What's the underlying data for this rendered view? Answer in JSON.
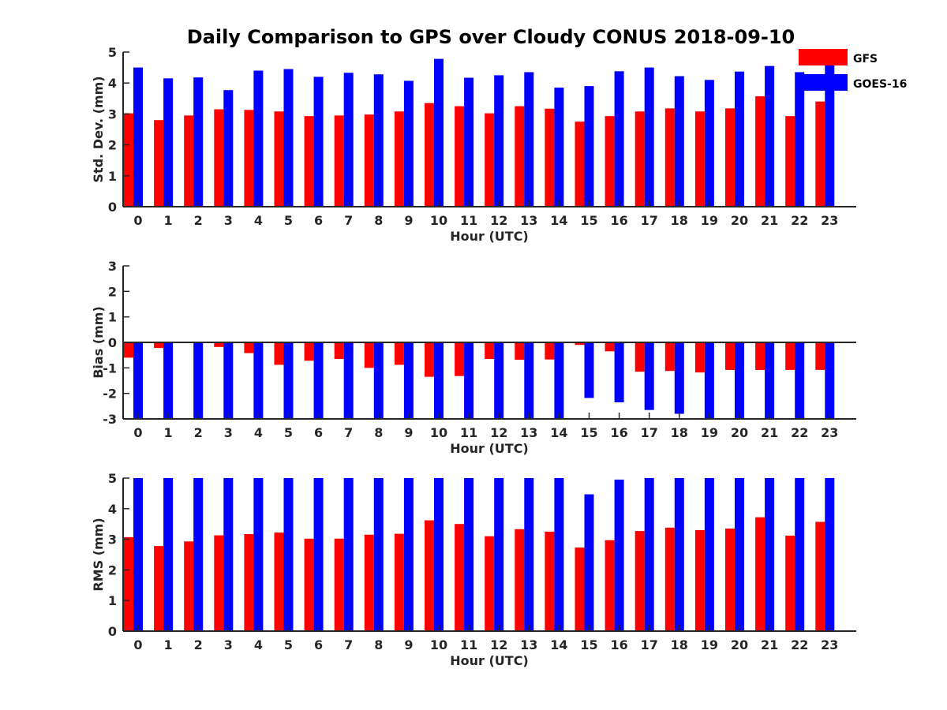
{
  "chart_data": {
    "type": "bar",
    "title": "Daily Comparison to GPS over Cloudy CONUS 2018-09-10",
    "legend": {
      "placement": "top-right",
      "entries": [
        {
          "label": "GFS",
          "color": "#ff0000"
        },
        {
          "label": "GOES-16",
          "color": "#0000ff"
        }
      ]
    },
    "categories": [
      "0",
      "1",
      "2",
      "3",
      "4",
      "5",
      "6",
      "7",
      "8",
      "9",
      "10",
      "11",
      "12",
      "13",
      "14",
      "15",
      "16",
      "17",
      "18",
      "19",
      "20",
      "21",
      "22",
      "23"
    ],
    "grid": false,
    "panels": [
      {
        "id": "stddev",
        "xlabel": "Hour (UTC)",
        "ylabel": "Std. Dev. (mm)",
        "ylim": [
          0,
          5
        ],
        "yticks": [
          "0",
          "1",
          "2",
          "3",
          "4",
          "5"
        ],
        "series": [
          {
            "name": "GFS",
            "color": "#ff0000",
            "values": [
              3.02,
              2.8,
              2.95,
              3.15,
              3.13,
              3.08,
              2.93,
              2.95,
              2.98,
              3.08,
              3.35,
              3.25,
              3.02,
              3.25,
              3.17,
              2.75,
              2.93,
              3.08,
              3.18,
              3.08,
              3.18,
              3.57,
              2.93,
              3.4
            ]
          },
          {
            "name": "GOES-16",
            "color": "#0000ff",
            "values": [
              4.5,
              4.15,
              4.18,
              3.77,
              4.4,
              4.45,
              4.2,
              4.33,
              4.28,
              4.07,
              4.78,
              4.17,
              4.25,
              4.35,
              3.85,
              3.9,
              4.38,
              4.5,
              4.22,
              4.1,
              4.37,
              4.55,
              4.35,
              4.7
            ]
          }
        ]
      },
      {
        "id": "bias",
        "xlabel": "Hour (UTC)",
        "ylabel": "Bias (mm)",
        "ylim": [
          -3,
          3
        ],
        "yticks": [
          "-3",
          "-2",
          "-1",
          "0",
          "1",
          "2",
          "3"
        ],
        "series": [
          {
            "name": "GFS",
            "color": "#ff0000",
            "values": [
              -0.6,
              -0.22,
              0.02,
              -0.18,
              -0.42,
              -0.88,
              -0.72,
              -0.65,
              -1.0,
              -0.88,
              -1.35,
              -1.32,
              -0.65,
              -0.68,
              -0.67,
              -0.1,
              -0.35,
              -1.15,
              -1.12,
              -1.18,
              -1.08,
              -1.08,
              -1.08,
              -1.08
            ]
          },
          {
            "name": "GOES-16",
            "color": "#0000ff",
            "values": [
              -3.0,
              -3.0,
              -3.0,
              -3.0,
              -3.0,
              -3.0,
              -3.0,
              -3.0,
              -3.0,
              -3.0,
              -3.0,
              -3.0,
              -3.0,
              -3.0,
              -3.0,
              -2.18,
              -2.35,
              -2.65,
              -2.8,
              -3.0,
              -3.0,
              -3.0,
              -3.0,
              -3.0
            ]
          }
        ]
      },
      {
        "id": "rms",
        "xlabel": "Hour (UTC)",
        "ylabel": "RMS (mm)",
        "ylim": [
          0,
          5
        ],
        "yticks": [
          "0",
          "1",
          "2",
          "3",
          "4",
          "5"
        ],
        "series": [
          {
            "name": "GFS",
            "color": "#ff0000",
            "values": [
              3.07,
              2.78,
              2.93,
              3.13,
              3.17,
              3.22,
              3.02,
              3.02,
              3.15,
              3.18,
              3.62,
              3.5,
              3.1,
              3.33,
              3.25,
              2.73,
              2.97,
              3.27,
              3.38,
              3.3,
              3.35,
              3.72,
              3.12,
              3.57
            ]
          },
          {
            "name": "GOES-16",
            "color": "#0000ff",
            "values": [
              5.0,
              5.0,
              5.0,
              5.0,
              5.0,
              5.0,
              5.0,
              5.0,
              5.0,
              5.0,
              5.0,
              5.0,
              5.0,
              5.0,
              5.0,
              4.47,
              4.95,
              5.0,
              5.0,
              5.0,
              5.0,
              5.0,
              5.0,
              5.0
            ]
          }
        ]
      }
    ]
  }
}
